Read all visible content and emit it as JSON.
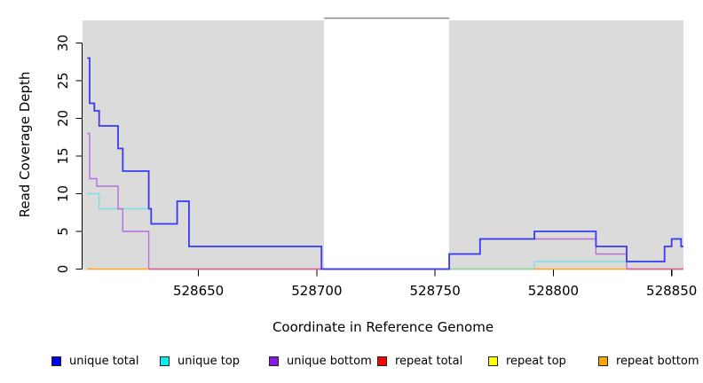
{
  "chart_data": {
    "type": "line",
    "subtype": "step-coverage",
    "title": "",
    "xlabel": "Coordinate in Reference Genome",
    "ylabel": "Read Coverage Depth",
    "xlim": [
      528601,
      528855
    ],
    "ylim": [
      0,
      33
    ],
    "x_ticks": [
      528650,
      528700,
      528750,
      528800,
      528850
    ],
    "y_ticks": [
      0,
      5,
      10,
      15,
      20,
      25,
      30
    ],
    "grid": "off",
    "legend_position": "bottom",
    "plot_bg_color": "#DBDBDB",
    "gap_region": {
      "from": 528703,
      "to": 528756,
      "color": "#FFFFFF",
      "top_border_color": "#8C8C8C"
    },
    "series": [
      {
        "name": "unique total",
        "line_color": "#3A3AEF",
        "end": 528855,
        "steps": [
          [
            528603,
            28
          ],
          [
            528604,
            22
          ],
          [
            528606,
            21
          ],
          [
            528608,
            19
          ],
          [
            528616,
            16
          ],
          [
            528618,
            13
          ],
          [
            528629,
            8
          ],
          [
            528630,
            6
          ],
          [
            528641,
            9
          ],
          [
            528646,
            3
          ],
          [
            528702,
            0
          ],
          [
            528756,
            2
          ],
          [
            528769,
            4
          ],
          [
            528792,
            5
          ],
          [
            528818,
            3
          ],
          [
            528831,
            1
          ],
          [
            528847,
            3
          ],
          [
            528850,
            4
          ],
          [
            528854,
            3
          ]
        ]
      },
      {
        "name": "unique top",
        "line_color": "#7BDFE6",
        "end": 528855,
        "steps": [
          [
            528603,
            10
          ],
          [
            528608,
            8
          ],
          [
            528630,
            6
          ],
          [
            528641,
            9
          ],
          [
            528646,
            3
          ],
          [
            528702,
            0
          ],
          [
            528792,
            1
          ],
          [
            528847,
            3
          ],
          [
            528850,
            4
          ],
          [
            528854,
            3
          ]
        ]
      },
      {
        "name": "unique bottom",
        "line_color": "#B76FDB",
        "end": 528855,
        "steps": [
          [
            528603,
            18
          ],
          [
            528604,
            12
          ],
          [
            528607,
            11
          ],
          [
            528616,
            8
          ],
          [
            528618,
            5
          ],
          [
            528629,
            0
          ],
          [
            528756,
            2
          ],
          [
            528769,
            4
          ],
          [
            528818,
            2
          ],
          [
            528831,
            0
          ]
        ]
      },
      {
        "name": "repeat total",
        "line_color": "#E0608C",
        "end": 528855,
        "steps": [
          [
            528603,
            0
          ]
        ]
      },
      {
        "name": "repeat top",
        "line_color": "#EEEE00",
        "end": 528855,
        "steps": [
          [
            528603,
            0
          ]
        ]
      },
      {
        "name": "repeat bottom",
        "line_color": "#FFA520",
        "end": 528855,
        "steps": [
          [
            528603,
            0
          ]
        ]
      }
    ],
    "zero_line_segments": [
      {
        "from": 528603,
        "to": 528629,
        "color": "#FFA520",
        "series": "repeat bottom"
      },
      {
        "from": 528629,
        "to": 528702,
        "color": "#E0608C",
        "series": "repeat total"
      },
      {
        "from": 528702,
        "to": 528756,
        "color": "#7A5FE0",
        "series": "unique total+bottom"
      },
      {
        "from": 528756,
        "to": 528792,
        "color": "#8FD88F",
        "series": "repeat top+unique top"
      },
      {
        "from": 528792,
        "to": 528831,
        "color": "#FFA520",
        "series": "repeat bottom"
      },
      {
        "from": 528831,
        "to": 528855,
        "color": "#E0608C",
        "series": "repeat total"
      }
    ],
    "legend": [
      {
        "label": "unique total",
        "color": "#0000F0"
      },
      {
        "label": "unique top",
        "color": "#00F0F0"
      },
      {
        "label": "unique bottom",
        "color": "#8B17E0"
      },
      {
        "label": "repeat total",
        "color": "#FF0000"
      },
      {
        "label": "repeat top",
        "color": "#FFFF00"
      },
      {
        "label": "repeat bottom",
        "color": "#FFA500"
      }
    ]
  }
}
